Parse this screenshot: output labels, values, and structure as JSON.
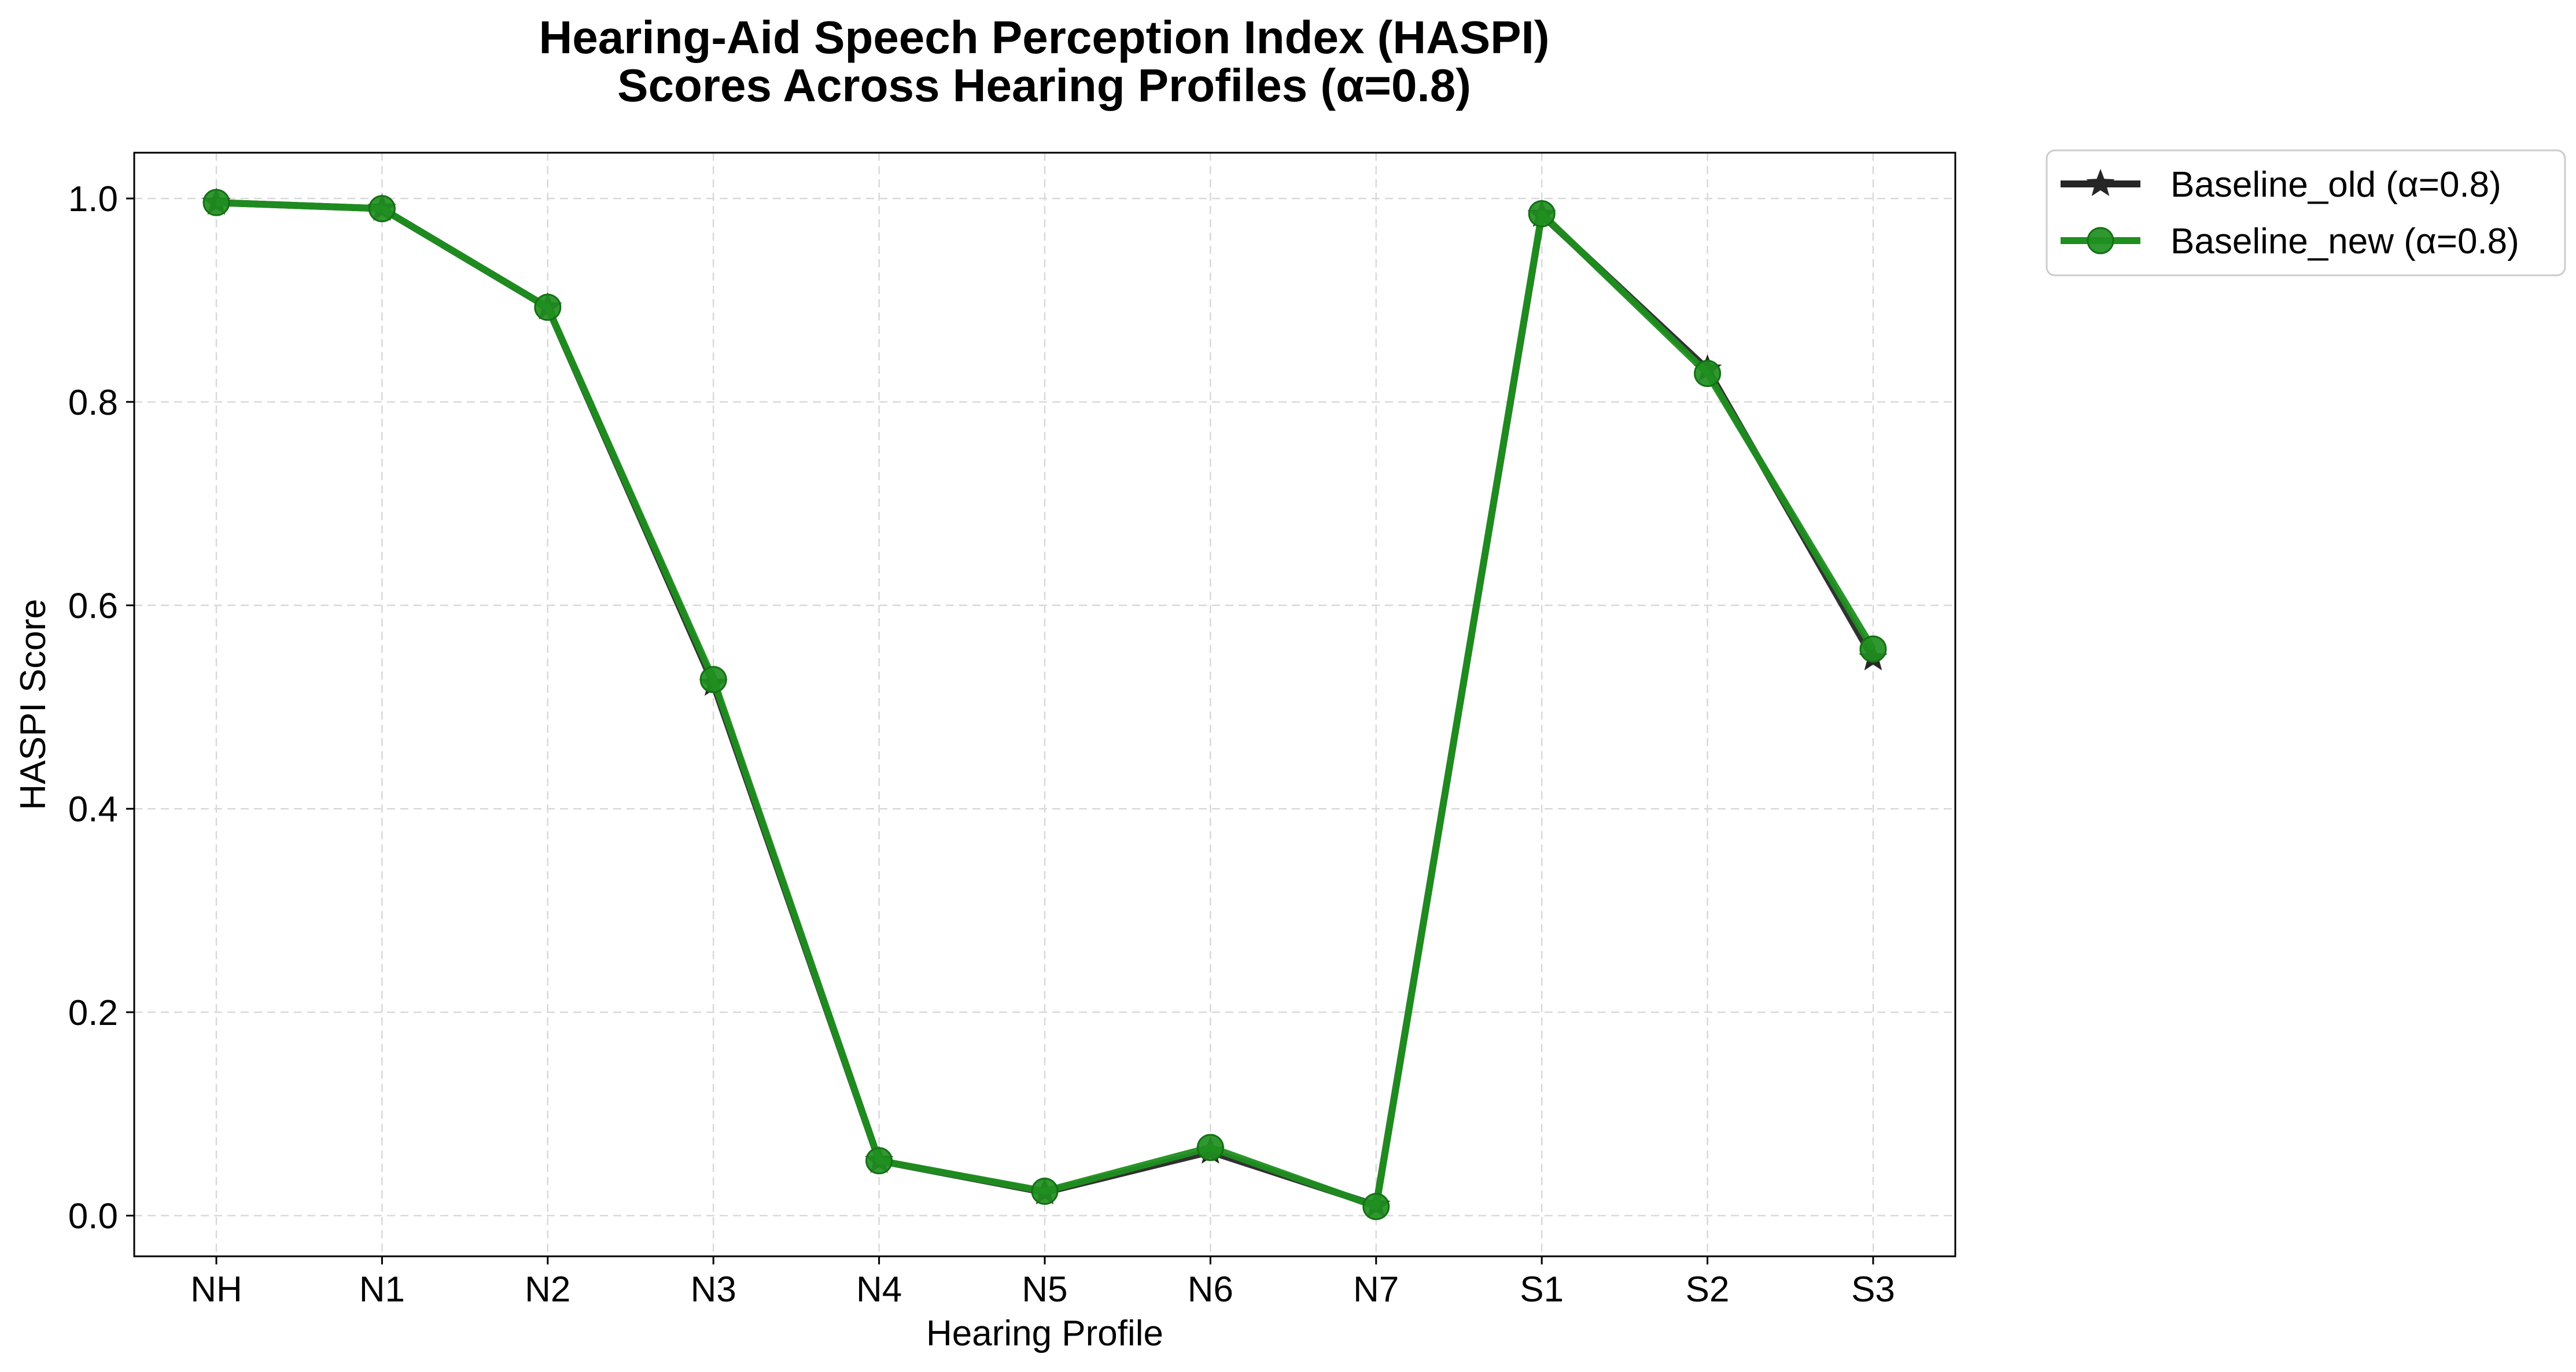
{
  "chart_data": {
    "type": "line",
    "title_lines": [
      "Hearing-Aid Speech Perception Index (HASPI)",
      "Scores Across Hearing Profiles (α=0.8)"
    ],
    "xlabel": "Hearing Profile",
    "ylabel": "HASPI Score",
    "categories": [
      "NH",
      "N1",
      "N2",
      "N3",
      "N4",
      "N5",
      "N6",
      "N7",
      "S1",
      "S2",
      "S3"
    ],
    "ylim": [
      -0.04,
      1.045
    ],
    "yticks": [
      0.0,
      0.2,
      0.4,
      0.6,
      0.8,
      1.0
    ],
    "ytick_labels": [
      "0.0",
      "0.2",
      "0.4",
      "0.6",
      "0.8",
      "1.0"
    ],
    "grid": true,
    "legend_position": "outside upper-right",
    "series": [
      {
        "name": "Baseline_old (α=0.8)",
        "color": "#262626",
        "marker": "star",
        "values": [
          0.996,
          0.99,
          0.893,
          0.523,
          0.054,
          0.023,
          0.063,
          0.01,
          0.984,
          0.832,
          0.548
        ]
      },
      {
        "name": "Baseline_new (α=0.8)",
        "color": "#1f8f1f",
        "marker": "circle",
        "values": [
          0.996,
          0.99,
          0.893,
          0.527,
          0.054,
          0.024,
          0.067,
          0.009,
          0.985,
          0.828,
          0.557
        ]
      }
    ]
  }
}
